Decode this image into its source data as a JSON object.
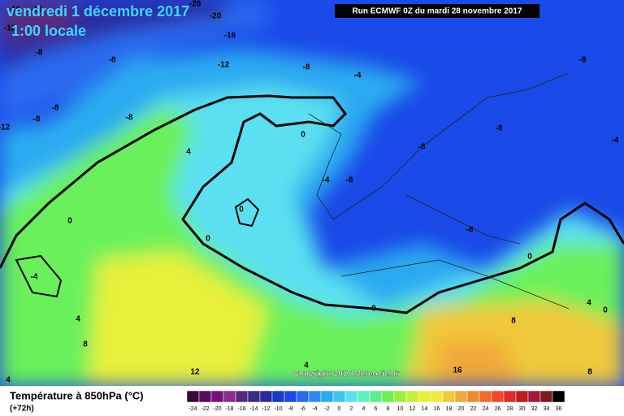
{
  "header": {
    "date": "vendredi 1 décembre 2017",
    "time": "1:00 locale",
    "run": "Run ECMWF 0Z du mardi 28 novembre 2017",
    "copyright": "Copyright 2017 Meteociel.fr"
  },
  "legend": {
    "title": "Température à 850hPa (°C)",
    "lead": "(+72h)",
    "values": [
      -24,
      -22,
      -20,
      -18,
      -16,
      -14,
      -12,
      -10,
      -8,
      -6,
      -4,
      -2,
      0,
      2,
      4,
      6,
      8,
      10,
      12,
      14,
      16,
      18,
      20,
      22,
      24,
      26,
      28,
      30,
      32,
      34,
      36
    ],
    "colors": [
      "#3a0a3e",
      "#5a0a5e",
      "#7a1080",
      "#8e2a96",
      "#5a2a7a",
      "#3a2a8a",
      "#2a2aa0",
      "#1a3ac8",
      "#1a4ae8",
      "#2a6af0",
      "#2a8af0",
      "#2aaaf0",
      "#3ac8f0",
      "#5ae0f0",
      "#5af0c0",
      "#5af08a",
      "#6af05a",
      "#9af03a",
      "#c8f03a",
      "#e8f03a",
      "#f0e83a",
      "#f0c83a",
      "#f0a83a",
      "#f08a2a",
      "#f06a2a",
      "#f04a2a",
      "#e02a2a",
      "#c01a1a",
      "#a01a3a",
      "#801a1a",
      "#000000"
    ]
  },
  "map": {
    "labels": [
      "-16",
      "-16",
      "-20",
      "-20",
      "-12",
      "-16",
      "-8",
      "-8",
      "-12",
      "-8",
      "-4",
      "-8",
      "-8",
      "-8",
      "-8",
      "-12",
      "0",
      "-8",
      "-8",
      "-4",
      "4",
      "-8",
      "-4",
      "0",
      "0",
      "0",
      "-8",
      "0",
      "-4",
      "0",
      "4",
      "0",
      "4",
      "8",
      "8",
      "4",
      "12",
      "16",
      "8",
      "4"
    ]
  }
}
